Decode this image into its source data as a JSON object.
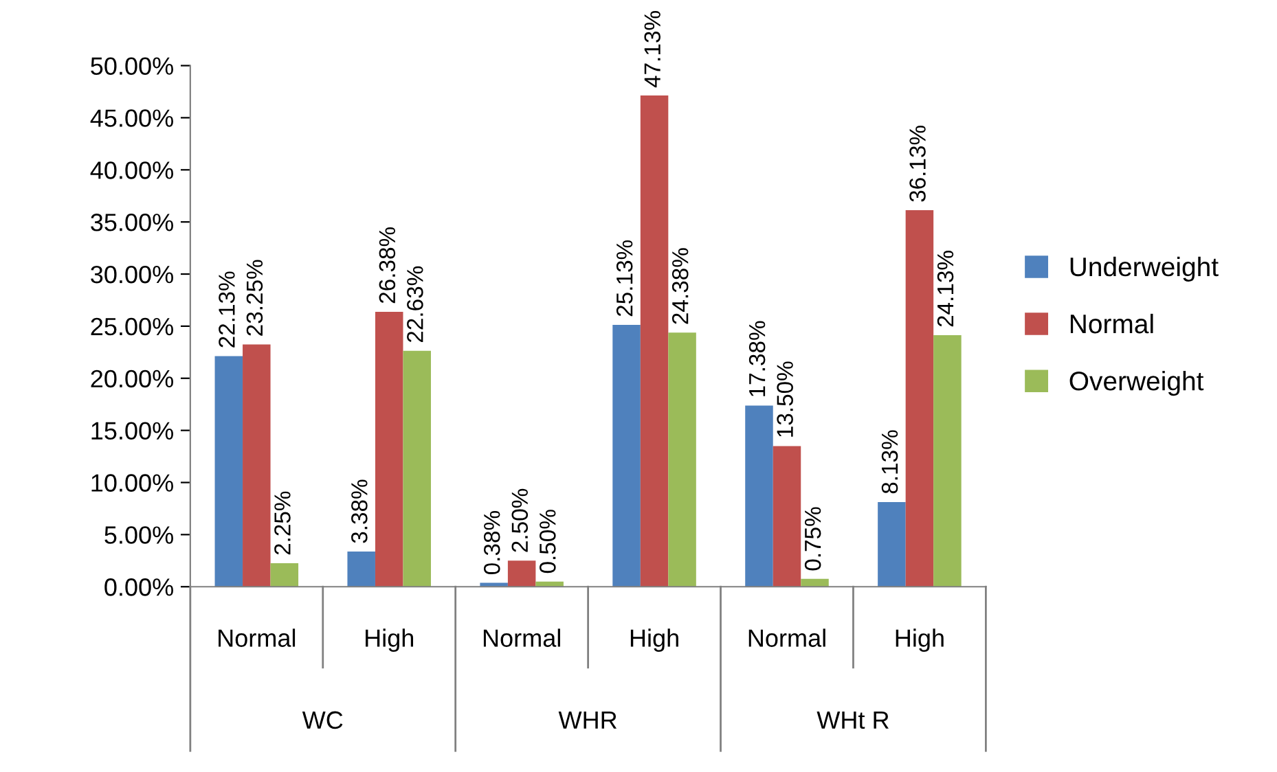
{
  "chart_data": {
    "type": "bar",
    "categories": [
      "Normal",
      "High",
      "Normal",
      "High",
      "Normal",
      "High"
    ],
    "annotations": [
      "WC",
      "WHR",
      "WHt R"
    ],
    "series": [
      {
        "name": "Underweight",
        "color": "#4f81bd",
        "values": [
          22.13,
          3.38,
          0.38,
          25.13,
          17.38,
          8.13
        ],
        "value_labels": [
          "22.13%",
          "3.38%",
          "0.38%",
          "25.13%",
          "17.38%",
          "8.13%"
        ]
      },
      {
        "name": "Normal",
        "color": "#c0504d",
        "values": [
          23.25,
          26.38,
          2.5,
          47.13,
          13.5,
          36.13
        ],
        "value_labels": [
          "23.25%",
          "26.38%",
          "2.50%",
          "47.13%",
          "13.50%",
          "36.13%"
        ]
      },
      {
        "name": "Overweight",
        "color": "#9bbb59",
        "values": [
          2.25,
          22.63,
          0.5,
          24.38,
          0.75,
          24.13
        ],
        "value_labels": [
          "2.25%",
          "22.63%",
          "0.50%",
          "24.38%",
          "0.75%",
          "24.13%"
        ]
      }
    ],
    "ylim": [
      0,
      50
    ],
    "yticks": [
      {
        "value": 0,
        "label": "0.00%"
      },
      {
        "value": 5,
        "label": "5.00%"
      },
      {
        "value": 10,
        "label": "10.00%"
      },
      {
        "value": 15,
        "label": "15.00%"
      },
      {
        "value": 20,
        "label": "20.00%"
      },
      {
        "value": 25,
        "label": "25.00%"
      },
      {
        "value": 30,
        "label": "30.00%"
      },
      {
        "value": 35,
        "label": "35.00%"
      },
      {
        "value": 40,
        "label": "40.00%"
      },
      {
        "value": 45,
        "label": "45.00%"
      },
      {
        "value": 50,
        "label": "50.00%"
      }
    ],
    "grid": false,
    "legend": "right"
  }
}
